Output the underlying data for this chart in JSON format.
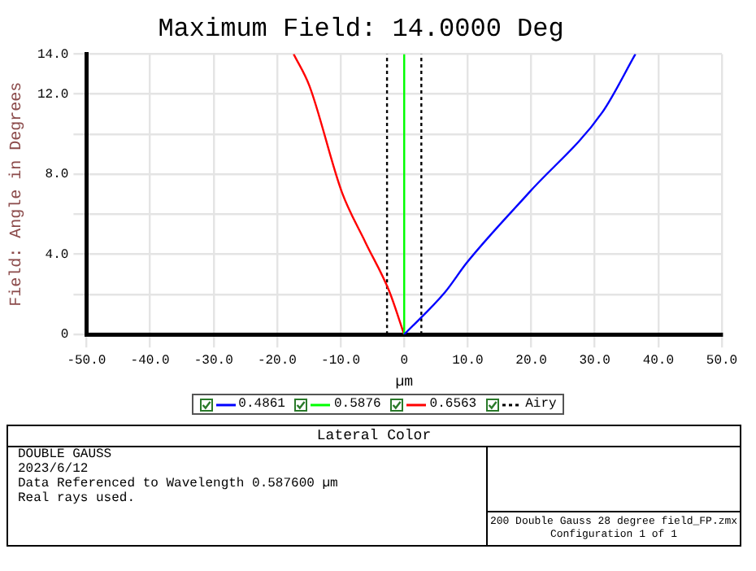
{
  "chart_data": {
    "type": "line",
    "title": "Maximum Field: 14.0000 Deg",
    "xlabel": "µm",
    "ylabel": "Field: Angle in Degrees",
    "xlim": [
      -50,
      50
    ],
    "xticks": [
      {
        "value": -50,
        "label": "-50.0"
      },
      {
        "value": -40,
        "label": "-40.0"
      },
      {
        "value": -30,
        "label": "-30.0"
      },
      {
        "value": -20,
        "label": "-20.0"
      },
      {
        "value": -10,
        "label": "-10.0"
      },
      0,
      {
        "value": 10,
        "label": "10.0"
      },
      {
        "value": 20,
        "label": "20.0"
      },
      {
        "value": 30,
        "label": "30.0"
      },
      {
        "value": 40,
        "label": "40.0"
      },
      {
        "value": 50,
        "label": "50.0"
      }
    ],
    "ylim": [
      0,
      14
    ],
    "yticks": [
      0,
      {
        "value": 2,
        "label": null
      },
      {
        "value": 4,
        "label": "4.0"
      },
      {
        "value": 6,
        "label": null
      },
      {
        "value": 8,
        "label": "8.0"
      },
      {
        "value": 10,
        "label": null
      },
      {
        "value": 12,
        "label": "12.0"
      },
      {
        "value": 14,
        "label": "14.0"
      }
    ],
    "grid": true,
    "legend": "bottom",
    "marker": "none",
    "series": [
      {
        "name": "0.4861",
        "color": "#0000ff",
        "x": [
          0,
          6.4,
          9.9,
          19.7,
          31.2,
          36.4
        ],
        "values": [
          0,
          2.1,
          3.6,
          7.1,
          11.1,
          14
        ]
      },
      {
        "name": "0.5876",
        "color": "#00ff00",
        "x": [
          0,
          0
        ],
        "values": [
          0,
          14
        ]
      },
      {
        "name": "0.6563",
        "color": "#ff0000",
        "x": [
          0,
          -2.4,
          -6.1,
          -9.8,
          -14.9,
          -17.4
        ],
        "values": [
          0,
          2.2,
          4.6,
          7.1,
          12.4,
          14
        ]
      },
      {
        "name": "Airy",
        "color": "#000000",
        "line_style": "dotted",
        "x": [
          -2.7,
          -2.7,
          0,
          2.7,
          2.7
        ],
        "values": [
          0,
          14,
          null,
          0,
          14
        ]
      }
    ],
    "annotations": [
      "Lateral Color",
      "DOUBLE GAUSS",
      "2023/6/12",
      "Data Referenced to Wavelength 0.587600 µm",
      "Real rays used.",
      "200 Double Gauss 28 degree field_FP.zmx",
      "Configuration 1 of 1"
    ]
  }
}
